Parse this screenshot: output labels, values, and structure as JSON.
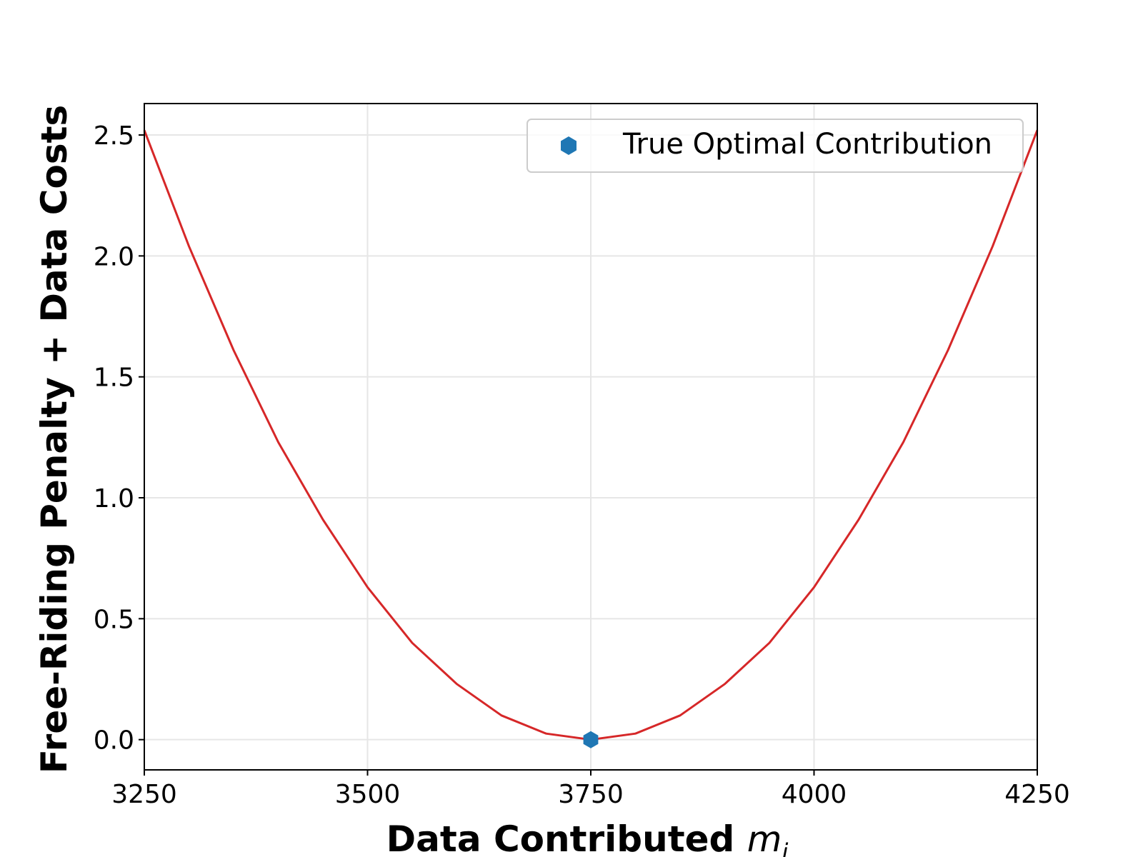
{
  "chart_data": {
    "type": "line",
    "xlabel": "Data Contributed",
    "xlabel_var": "m",
    "xlabel_sub": "i",
    "ylabel": "Free-Riding Penalty + Data Costs",
    "xlim": [
      3250,
      4250
    ],
    "ylim": [
      -0.125,
      2.63
    ],
    "x_ticks": [
      3250,
      3500,
      3750,
      4000,
      4250
    ],
    "x_tick_labels": [
      "3250",
      "3500",
      "3750",
      "4000",
      "4250"
    ],
    "y_ticks": [
      0.0,
      0.5,
      1.0,
      1.5,
      2.0,
      2.5
    ],
    "y_tick_labels": [
      "0.0",
      "0.5",
      "1.0",
      "1.5",
      "2.0",
      "2.5"
    ],
    "grid": true,
    "legend_position": "top-right",
    "series": [
      {
        "kind": "line",
        "color": "#d62728",
        "x": [
          3250,
          3300,
          3350,
          3400,
          3450,
          3500,
          3550,
          3600,
          3650,
          3700,
          3750,
          3800,
          3850,
          3900,
          3950,
          4000,
          4050,
          4100,
          4150,
          4200,
          4250
        ],
        "y": [
          2.52,
          2.04,
          1.61,
          1.23,
          0.91,
          0.63,
          0.4,
          0.23,
          0.1,
          0.025,
          0.0,
          0.025,
          0.1,
          0.23,
          0.4,
          0.63,
          0.91,
          1.23,
          1.61,
          2.04,
          2.52
        ]
      },
      {
        "kind": "marker",
        "name": "True Optimal Contribution",
        "marker": "hexagon",
        "color": "#1f77b4",
        "x": [
          3750
        ],
        "y": [
          0.0
        ]
      }
    ]
  }
}
